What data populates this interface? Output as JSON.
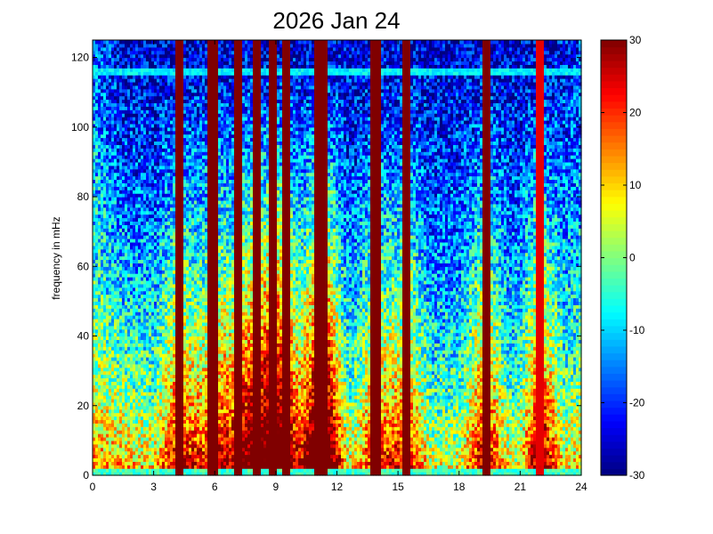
{
  "chart_data": {
    "type": "heatmap",
    "title": "2026 Jan 24",
    "xlabel": "",
    "ylabel": "frequency in mHz",
    "xlim": [
      0,
      24
    ],
    "ylim": [
      0,
      125
    ],
    "x_ticks": [
      0,
      3,
      6,
      9,
      12,
      15,
      18,
      21,
      24
    ],
    "y_ticks": [
      0,
      20,
      40,
      60,
      80,
      100,
      120
    ],
    "colorbar": {
      "range": [
        -30,
        30
      ],
      "ticks": [
        -30,
        -20,
        -10,
        0,
        10,
        20,
        30
      ],
      "colormap": "jet"
    },
    "background_profile": {
      "description_units": "time in hours, value at low frequency",
      "time_knots": [
        0,
        1,
        2,
        3,
        4,
        6,
        8,
        10,
        11.5,
        13,
        15,
        17,
        19,
        21,
        22,
        23,
        24
      ],
      "low_freq_level": [
        22,
        20,
        16,
        14,
        16,
        14,
        16,
        18,
        22,
        10,
        12,
        10,
        14,
        10,
        22,
        12,
        16
      ]
    },
    "vertical_bursts": {
      "times": [
        4.3,
        5.9,
        7.2,
        8.1,
        8.9,
        9.5,
        11.1,
        11.4,
        13.9,
        15.4,
        19.3,
        22.0
      ],
      "intensity": [
        30,
        30,
        30,
        30,
        30,
        30,
        30,
        30,
        30,
        30,
        30,
        24
      ]
    },
    "horizontal_band": {
      "frequency": 116,
      "value": -8
    },
    "floor_band": {
      "frequency_range": [
        0,
        2
      ],
      "value": -4
    }
  }
}
